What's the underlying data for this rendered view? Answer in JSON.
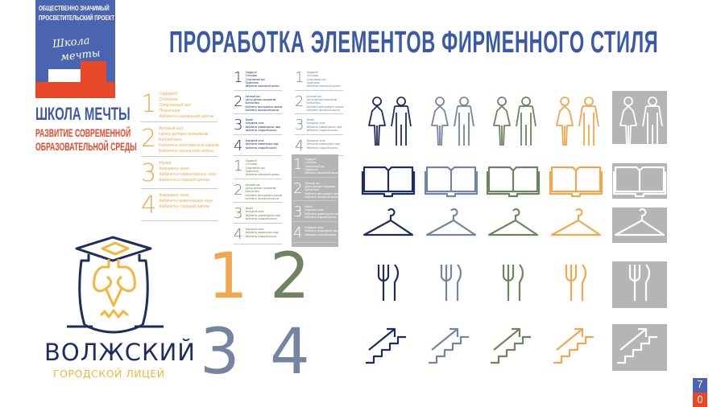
{
  "title": "ПРОРАБОТКА ЭЛЕМЕНТОВ ФИРМЕННОГО СТИЛЯ",
  "brand": {
    "tagline_1": "ОБЩЕСТВЕННО ЗНАЧИМЫЙ",
    "tagline_2": "ПРОСВЕТИТЕЛЬСКИЙ ПРОЕКТ",
    "script_1": "Школа",
    "script_2": "мечты",
    "name": "ШКОЛА МЕЧТЫ",
    "sub_1": "РАЗВИТИЕ СОВРЕМЕННОЙ",
    "sub_2": "ОБРАЗОВАТЕЛЬНОЙ СРЕДЫ",
    "blue": "#4a64b0",
    "red": "#e8482a"
  },
  "directory": [
    {
      "num": "1",
      "items": [
        "Гардероб",
        "Столовая",
        "Спортивный зал",
        "Прачечная",
        "Кабинеты начальной школы"
      ]
    },
    {
      "num": "2",
      "items": [
        "Актовый зал",
        "Центр детских инициатив",
        "Библиотека",
        "Кабинеты иностранных языков",
        "Кабинеты начальной школы"
      ]
    },
    {
      "num": "3",
      "items": [
        "Музей",
        "Коворкинг-зона",
        "Кабинеты гуманитарных наук",
        "Кабинеты старшей школы"
      ]
    },
    {
      "num": "4",
      "items": [
        "Коворкинг-зона",
        "Кабинеты инженерных наук",
        "Кабинеты старшей школы"
      ]
    }
  ],
  "palette": {
    "navy": "#1f2d5c",
    "slate": "#7585a0",
    "green": "#6e8460",
    "orange": "#f0a850",
    "gray": "#b5b5b5"
  },
  "big_numbers": [
    "1",
    "2",
    "3",
    "4"
  ],
  "logo": {
    "name": "ВОЛЖСКИЙ",
    "sub": "ГОРОДСКОЙ ЛИЦЕЙ",
    "navy": "#1f2d5c",
    "yellow": "#f2b63c"
  },
  "icon_rows": [
    "restroom-icon",
    "book-icon",
    "hanger-icon",
    "cutlery-icon",
    "stairs-icon"
  ],
  "page": {
    "digit_1": "7",
    "digit_2": "0"
  }
}
